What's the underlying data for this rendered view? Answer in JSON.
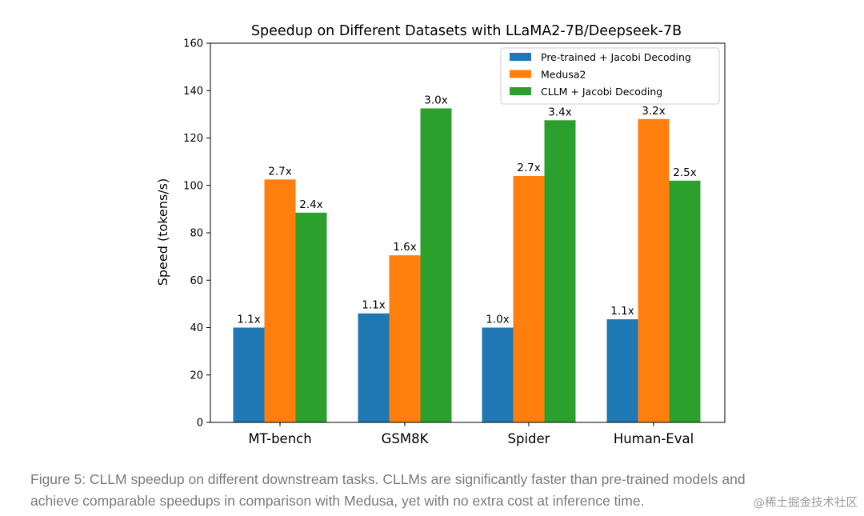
{
  "chart_data": {
    "type": "bar",
    "title": "Speedup on Different Datasets with LLaMA2-7B/Deepseek-7B",
    "xlabel": "",
    "ylabel": "Speed (tokens/s)",
    "ylim": [
      0,
      160
    ],
    "yticks": [
      "0",
      "20",
      "40",
      "60",
      "80",
      "100",
      "120",
      "140",
      "160"
    ],
    "categories": [
      "MT-bench",
      "GSM8K",
      "Spider",
      "Human-Eval"
    ],
    "grid": false,
    "legend_position": "top-right",
    "series": [
      {
        "name": "Pre-trained + Jacobi Decoding",
        "color": "#1f77b4",
        "values": [
          40,
          46,
          40,
          43.5
        ],
        "labels": [
          "1.1x",
          "1.1x",
          "1.0x",
          "1.1x"
        ]
      },
      {
        "name": "Medusa2",
        "color": "#ff7f0e",
        "values": [
          102.5,
          70.5,
          104,
          128
        ],
        "labels": [
          "2.7x",
          "1.6x",
          "2.7x",
          "3.2x"
        ]
      },
      {
        "name": "CLLM + Jacobi Decoding",
        "color": "#2ca02c",
        "values": [
          88.5,
          132.5,
          127.5,
          102
        ],
        "labels": [
          "2.4x",
          "3.0x",
          "3.4x",
          "2.5x"
        ]
      }
    ]
  },
  "caption": {
    "line1": "Figure 5: CLLM speedup on different downstream tasks. CLLMs are significantly faster than pre-trained models and",
    "line2": "achieve comparable speedups in comparison with Medusa, yet with no extra cost at inference time."
  },
  "watermark": "@稀土掘金技术社区"
}
